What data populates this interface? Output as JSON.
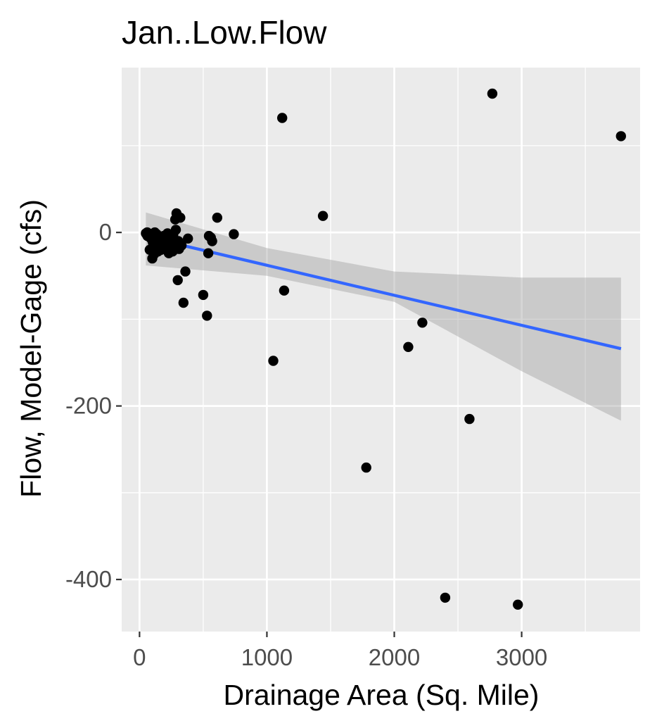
{
  "chart_data": {
    "type": "scatter",
    "title": "Jan..Low.Flow",
    "xlabel": "Drainage Area (Sq. Mile)",
    "ylabel": "Flow, Model-Gage (cfs)",
    "xlim": [
      -140,
      3930
    ],
    "ylim": [
      -460,
      190
    ],
    "x_ticks": [
      0,
      1000,
      2000,
      3000
    ],
    "x_tick_labels": [
      "0",
      "1000",
      "2000",
      "3000"
    ],
    "x_minor_ticks": [
      500,
      1500,
      2500,
      3500
    ],
    "y_ticks": [
      -400,
      -200,
      0
    ],
    "y_tick_labels": [
      "-400",
      "-200",
      "0"
    ],
    "y_minor_ticks": [
      -300,
      -100,
      100
    ],
    "grid": true,
    "legend": "none",
    "colors": {
      "panel": "#ebebeb",
      "grid": "#ffffff",
      "point": "#000000",
      "fit_line": "#3366ff",
      "ribbon": "#999999"
    },
    "points": [
      {
        "x": 50,
        "y": -1
      },
      {
        "x": 55,
        "y": -2
      },
      {
        "x": 60,
        "y": 0
      },
      {
        "x": 62,
        "y": -4
      },
      {
        "x": 70,
        "y": -1
      },
      {
        "x": 75,
        "y": -3
      },
      {
        "x": 80,
        "y": -20
      },
      {
        "x": 85,
        "y": -6
      },
      {
        "x": 90,
        "y": -2
      },
      {
        "x": 95,
        "y": -8
      },
      {
        "x": 100,
        "y": -30
      },
      {
        "x": 105,
        "y": -12
      },
      {
        "x": 110,
        "y": -5
      },
      {
        "x": 115,
        "y": -25
      },
      {
        "x": 120,
        "y": 0
      },
      {
        "x": 125,
        "y": -18
      },
      {
        "x": 130,
        "y": -9
      },
      {
        "x": 135,
        "y": -2
      },
      {
        "x": 140,
        "y": -15
      },
      {
        "x": 145,
        "y": -22
      },
      {
        "x": 150,
        "y": -6
      },
      {
        "x": 160,
        "y": -10
      },
      {
        "x": 170,
        "y": -20
      },
      {
        "x": 180,
        "y": -14
      },
      {
        "x": 190,
        "y": -4
      },
      {
        "x": 200,
        "y": -17
      },
      {
        "x": 210,
        "y": -8
      },
      {
        "x": 220,
        "y": -1
      },
      {
        "x": 230,
        "y": -24
      },
      {
        "x": 240,
        "y": -13
      },
      {
        "x": 250,
        "y": -6
      },
      {
        "x": 260,
        "y": -22
      },
      {
        "x": 265,
        "y": -3
      },
      {
        "x": 270,
        "y": -16
      },
      {
        "x": 280,
        "y": 15
      },
      {
        "x": 285,
        "y": 3
      },
      {
        "x": 290,
        "y": 22
      },
      {
        "x": 300,
        "y": -55
      },
      {
        "x": 305,
        "y": -10
      },
      {
        "x": 310,
        "y": -19
      },
      {
        "x": 320,
        "y": 17
      },
      {
        "x": 330,
        "y": -15
      },
      {
        "x": 345,
        "y": -81
      },
      {
        "x": 360,
        "y": -45
      },
      {
        "x": 380,
        "y": -7
      },
      {
        "x": 500,
        "y": -72
      },
      {
        "x": 530,
        "y": -96
      },
      {
        "x": 540,
        "y": -24
      },
      {
        "x": 545,
        "y": -4
      },
      {
        "x": 560,
        "y": -6
      },
      {
        "x": 570,
        "y": -10
      },
      {
        "x": 610,
        "y": 17
      },
      {
        "x": 740,
        "y": -2
      },
      {
        "x": 1050,
        "y": -148
      },
      {
        "x": 1120,
        "y": 132
      },
      {
        "x": 1135,
        "y": -67
      },
      {
        "x": 1440,
        "y": 19
      },
      {
        "x": 1780,
        "y": -271
      },
      {
        "x": 2110,
        "y": -132
      },
      {
        "x": 2220,
        "y": -104
      },
      {
        "x": 2400,
        "y": -421
      },
      {
        "x": 2590,
        "y": -215
      },
      {
        "x": 2770,
        "y": 160
      },
      {
        "x": 2970,
        "y": -429
      },
      {
        "x": 3780,
        "y": 111
      }
    ],
    "fit_line": {
      "method": "lm",
      "x": [
        50,
        3780
      ],
      "y": [
        -5,
        -134
      ]
    },
    "confidence_band": {
      "x": [
        50,
        1000,
        2000,
        3000,
        3780
      ],
      "lower": [
        -38,
        -50,
        -80,
        -160,
        -217
      ],
      "upper": [
        23,
        -18,
        -45,
        -52,
        -52
      ]
    }
  }
}
